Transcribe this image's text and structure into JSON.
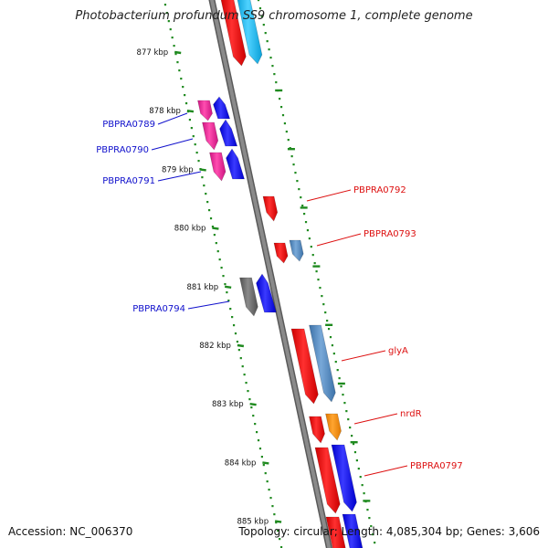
{
  "title": "Photobacterium profundum SS9 chromosome 1, complete genome",
  "footer": {
    "accession": "Accession: NC_006370",
    "topology": "Topology: circular; Length: 4,085,304 bp; Genes: 3,606"
  },
  "colors": {
    "backbone": "#8a8a8a",
    "ticks": "#1f8a1f",
    "label_left": "#1010cc",
    "label_right": "#dd1010"
  },
  "ticks": [
    {
      "label": "877 kbp",
      "kbp": 877
    },
    {
      "label": "878 kbp",
      "kbp": 878
    },
    {
      "label": "879 kbp",
      "kbp": 879
    },
    {
      "label": "880 kbp",
      "kbp": 880
    },
    {
      "label": "881 kbp",
      "kbp": 881
    },
    {
      "label": "882 kbp",
      "kbp": 882
    },
    {
      "label": "883 kbp",
      "kbp": 883
    },
    {
      "label": "884 kbp",
      "kbp": 884
    },
    {
      "label": "885 kbp",
      "kbp": 885
    }
  ],
  "genes": [
    {
      "name": "PBPRA0789",
      "side": "left"
    },
    {
      "name": "PBPRA0790",
      "side": "left"
    },
    {
      "name": "PBPRA0791",
      "side": "left"
    },
    {
      "name": "PBPRA0792",
      "side": "right"
    },
    {
      "name": "PBPRA0793",
      "side": "right"
    },
    {
      "name": "PBPRA0794",
      "side": "left"
    },
    {
      "name": "glyA",
      "side": "right"
    },
    {
      "name": "nrdR",
      "side": "right"
    },
    {
      "name": "PBPRA0797",
      "side": "right"
    }
  ]
}
